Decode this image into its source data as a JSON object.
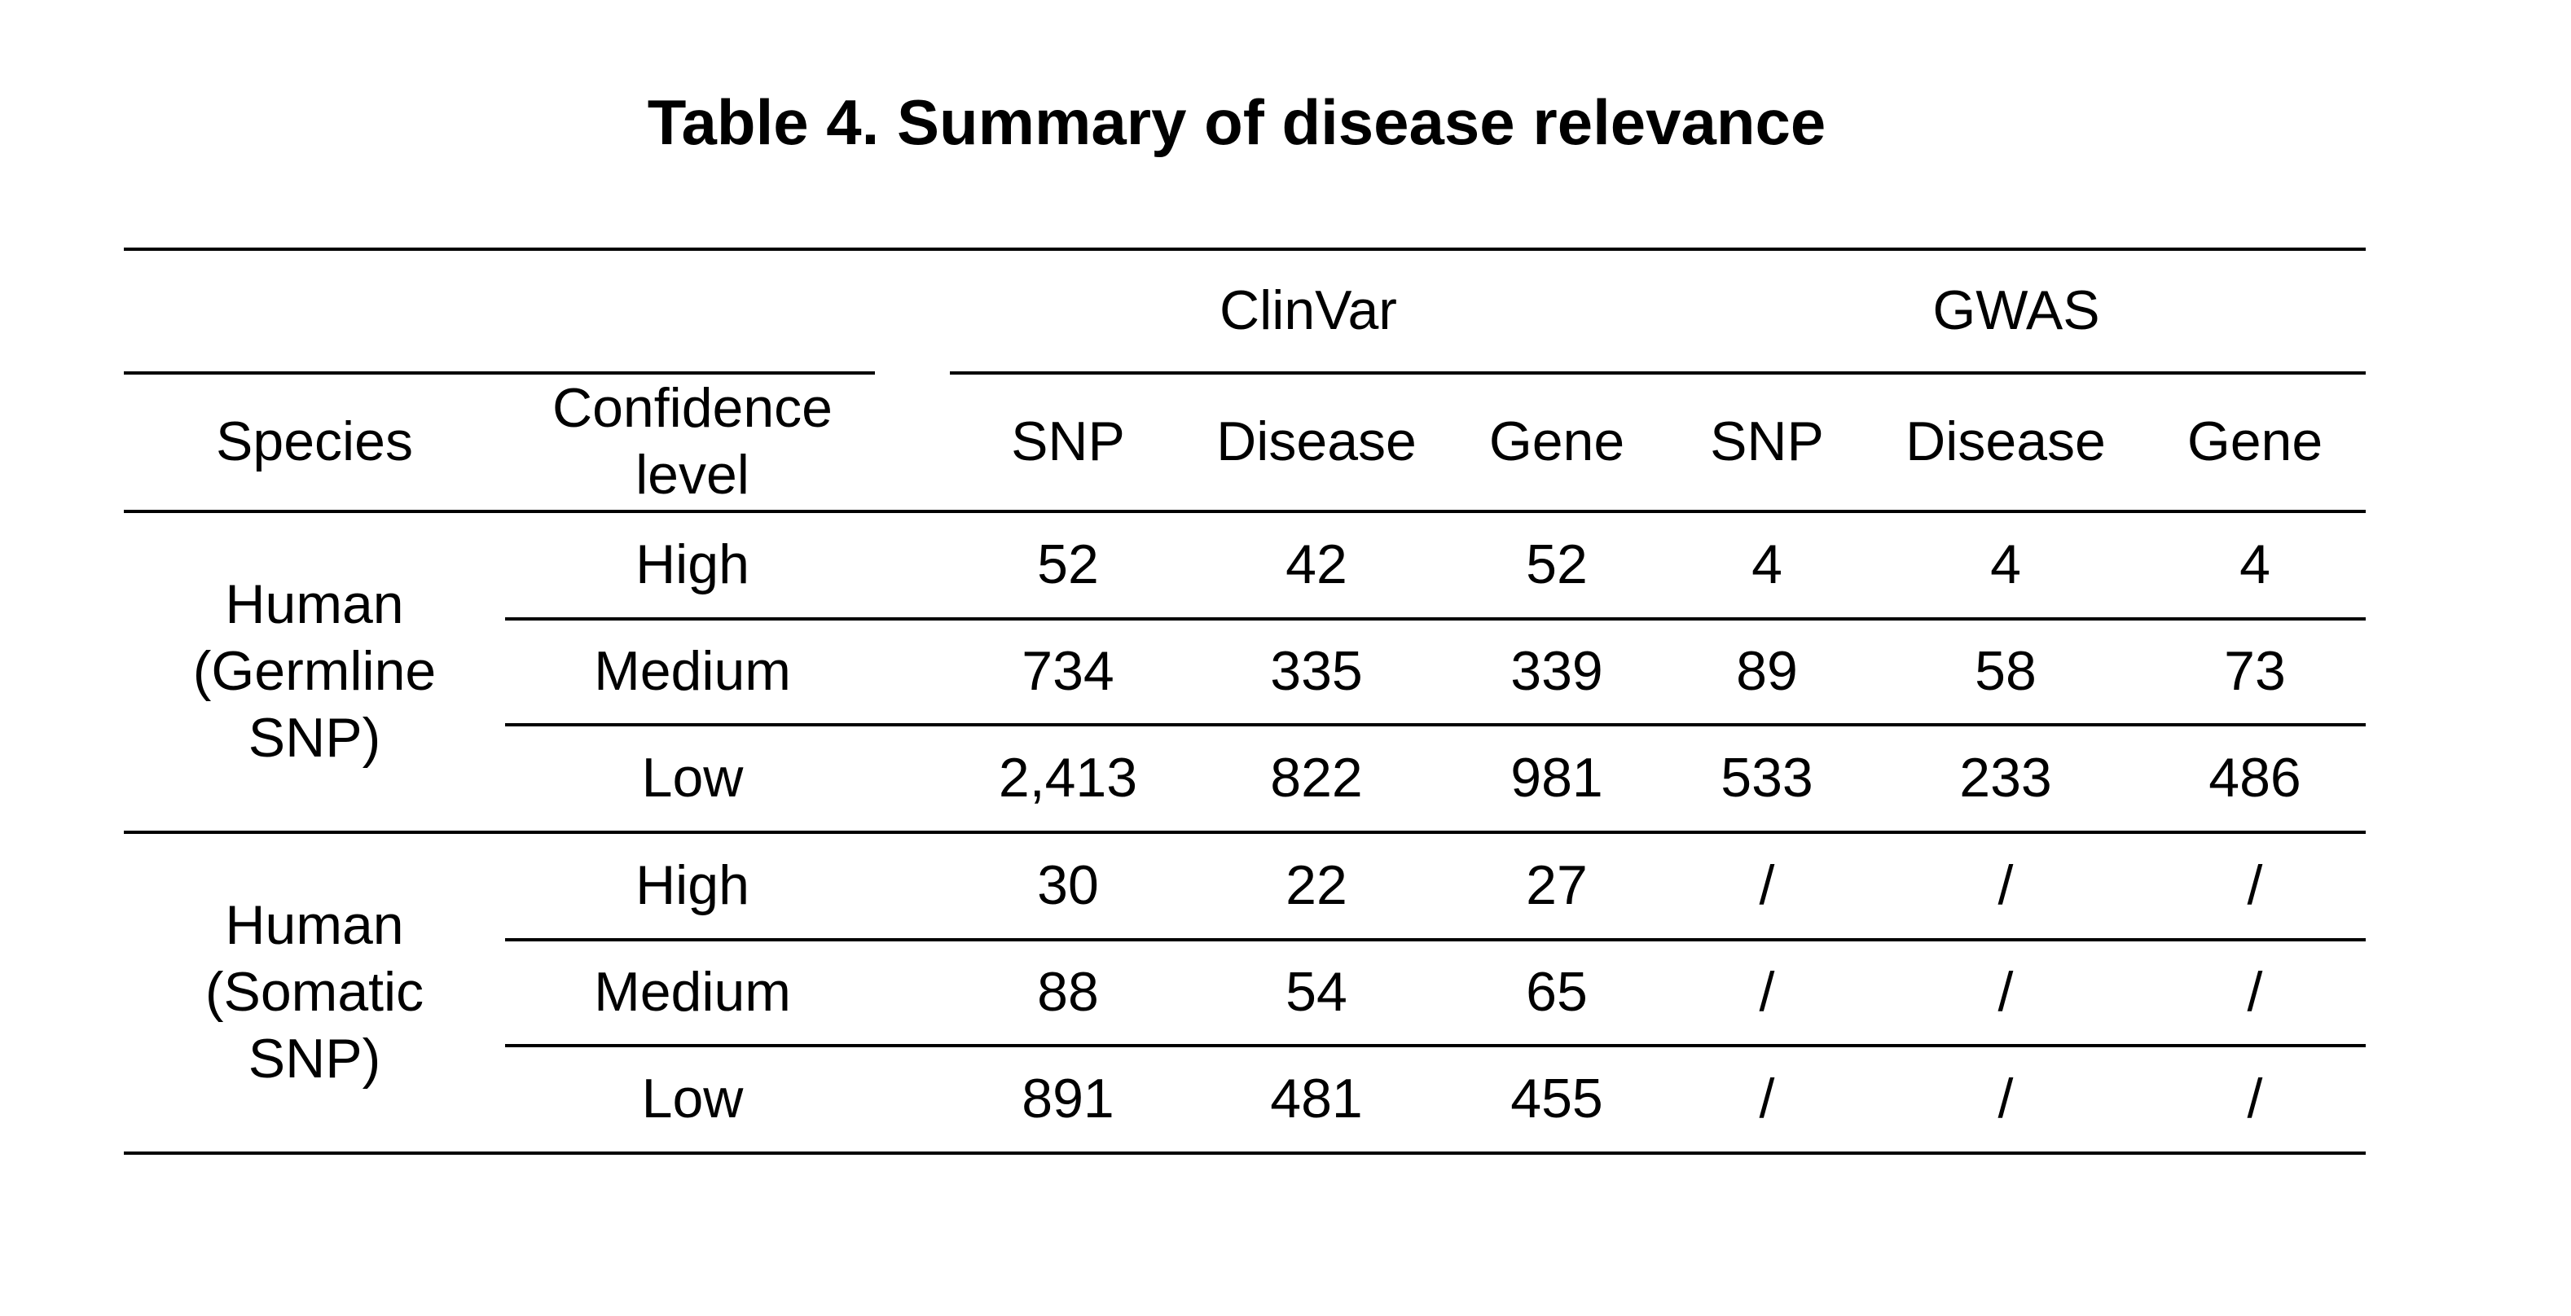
{
  "table": {
    "title": "Table 4. Summary of disease relevance",
    "group_headers": {
      "clinvar": "ClinVar",
      "gwas": "GWAS"
    },
    "column_headers": {
      "species": "Species",
      "confidence_line1": "Confidence",
      "confidence_line2": "level",
      "clinvar_snp": "SNP",
      "clinvar_disease": "Disease",
      "clinvar_gene": "Gene",
      "gwas_snp": "SNP",
      "gwas_disease": "Disease",
      "gwas_gene": "Gene"
    },
    "groups": [
      {
        "species_line1": "Human",
        "species_line2": "(Germline",
        "species_line3": "SNP)",
        "rows": [
          {
            "level": "High",
            "clinvar_snp": "52",
            "clinvar_disease": "42",
            "clinvar_gene": "52",
            "gwas_snp": "4",
            "gwas_disease": "4",
            "gwas_gene": "4"
          },
          {
            "level": "Medium",
            "clinvar_snp": "734",
            "clinvar_disease": "335",
            "clinvar_gene": "339",
            "gwas_snp": "89",
            "gwas_disease": "58",
            "gwas_gene": "73"
          },
          {
            "level": "Low",
            "clinvar_snp": "2,413",
            "clinvar_disease": "822",
            "clinvar_gene": "981",
            "gwas_snp": "533",
            "gwas_disease": "233",
            "gwas_gene": "486"
          }
        ]
      },
      {
        "species_line1": "Human",
        "species_line2": "(Somatic",
        "species_line3": "SNP)",
        "rows": [
          {
            "level": "High",
            "clinvar_snp": "30",
            "clinvar_disease": "22",
            "clinvar_gene": "27",
            "gwas_snp": "/",
            "gwas_disease": "/",
            "gwas_gene": "/"
          },
          {
            "level": "Medium",
            "clinvar_snp": "88",
            "clinvar_disease": "54",
            "clinvar_gene": "65",
            "gwas_snp": "/",
            "gwas_disease": "/",
            "gwas_gene": "/"
          },
          {
            "level": "Low",
            "clinvar_snp": "891",
            "clinvar_disease": "481",
            "clinvar_gene": "455",
            "gwas_snp": "/",
            "gwas_disease": "/",
            "gwas_gene": "/"
          }
        ]
      }
    ]
  }
}
